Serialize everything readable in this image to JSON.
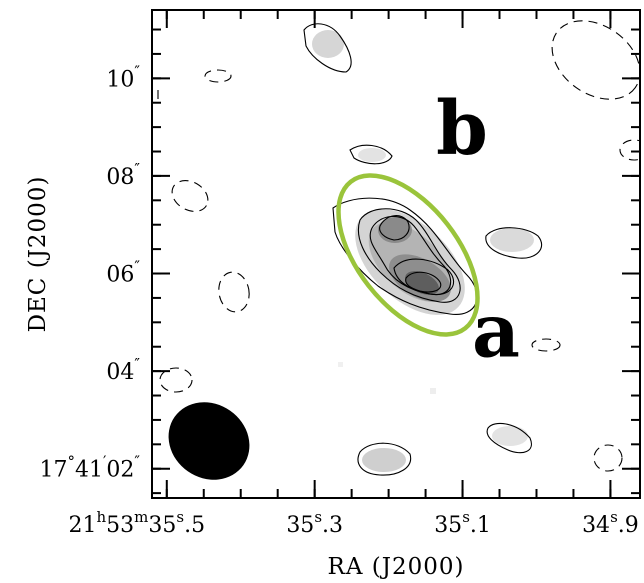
{
  "chart_data": {
    "type": "contour",
    "xlabel": "RA (J2000)",
    "ylabel": "DEC (J2000)",
    "x_ticks": [
      {
        "value": 35.5,
        "label": "21h53m35s.5"
      },
      {
        "value": 35.3,
        "label": "35s.3"
      },
      {
        "value": 35.1,
        "label": "35s.1"
      },
      {
        "value": 34.9,
        "label": "34s.9"
      }
    ],
    "y_ticks": [
      {
        "value": 2,
        "label": "17°41′02″"
      },
      {
        "value": 4,
        "label": "04″"
      },
      {
        "value": 6,
        "label": "06″"
      },
      {
        "value": 8,
        "label": "08″"
      },
      {
        "value": 10,
        "label": "10″"
      }
    ],
    "xlim": [
      35.52,
      34.86
    ],
    "ylim": [
      1.4,
      11.4
    ],
    "ra_reversed": true,
    "sources": [
      {
        "name": "a",
        "ra": 35.14,
        "dec": 5.8
      },
      {
        "name": "b",
        "ra": 35.18,
        "dec": 7.1
      }
    ],
    "highlight_ellipse_color": "#9ac43b",
    "beam_color": "#000000"
  }
}
